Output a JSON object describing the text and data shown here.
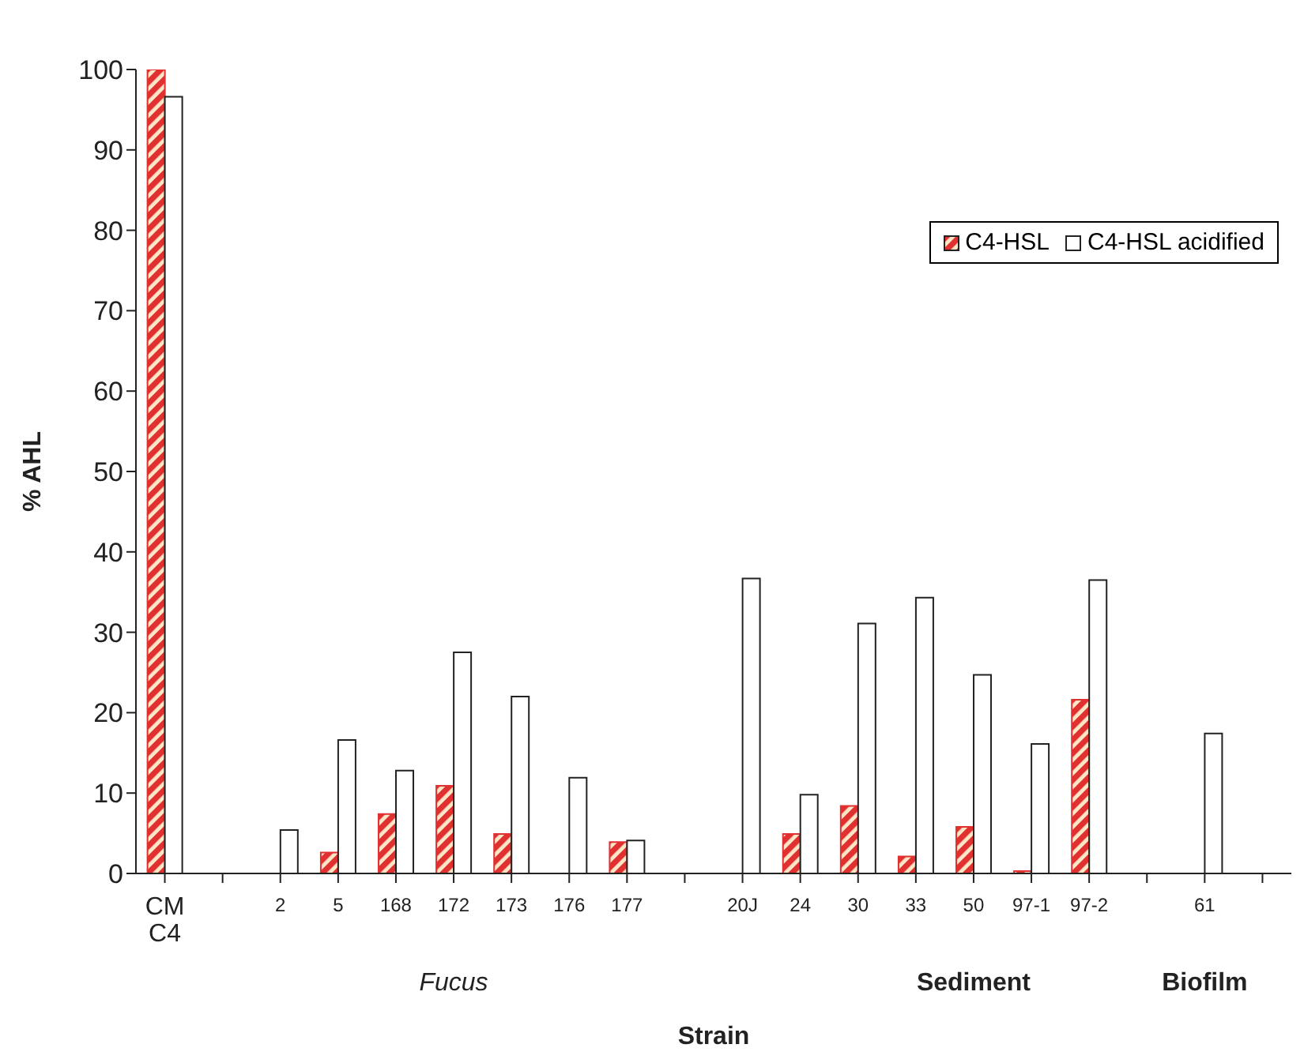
{
  "chart_data": {
    "type": "bar",
    "xlabel": "Strain",
    "ylabel": "% AHL",
    "categories": [
      "CM C4",
      null,
      "2",
      "5",
      "168",
      "172",
      "173",
      "176",
      "177",
      null,
      "20J",
      "24",
      "30",
      "33",
      "50",
      "97-1",
      "97-2",
      null,
      "61",
      null
    ],
    "series": [
      {
        "name": "C4-HSL",
        "color": "#e03030",
        "values": [
          100,
          null,
          0,
          2.6,
          7.4,
          10.9,
          4.9,
          0,
          3.9,
          null,
          0,
          4.9,
          8.4,
          2.1,
          5.8,
          0.3,
          21.6,
          null,
          0,
          null
        ]
      },
      {
        "name": "C4-HSL acidified",
        "color": "#ffffff",
        "values": [
          96.6,
          null,
          5.4,
          16.6,
          12.8,
          27.5,
          22.0,
          11.9,
          4.1,
          null,
          36.7,
          9.8,
          31.1,
          34.3,
          24.7,
          16.1,
          36.5,
          null,
          17.4,
          null
        ]
      }
    ],
    "ylim": [
      0,
      100
    ],
    "yticks": [
      0,
      10,
      20,
      30,
      40,
      50,
      60,
      70,
      80,
      90,
      100
    ],
    "annotations": [
      "Fucus",
      "Sediment",
      "Biofilm"
    ],
    "grid": false,
    "legend": "top right"
  }
}
